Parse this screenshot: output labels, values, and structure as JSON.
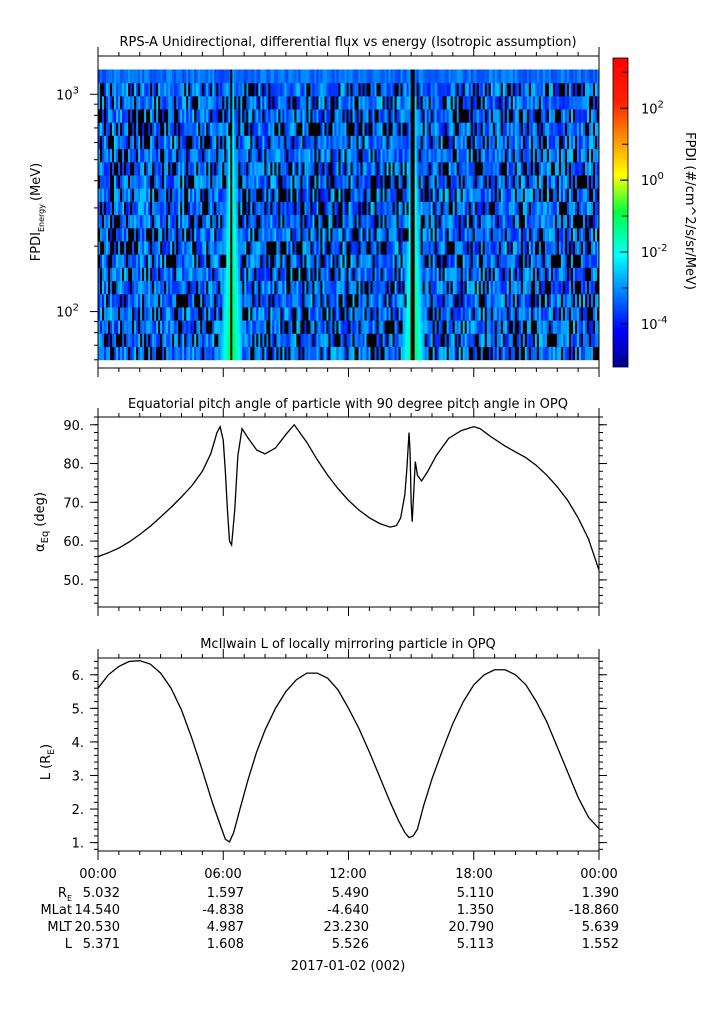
{
  "chart_data": [
    {
      "type": "heatmap",
      "title": "RPS-A Unidirectional, differential flux vs energy (Isotropic assumption)",
      "ylabel": "FPDI",
      "ylabel_sub": "Energy",
      "ylabel_unit": "(MeV)",
      "yscale": "log",
      "ylim": [
        55,
        1500
      ],
      "yticks": [
        {
          "value": 100,
          "base": "10",
          "exp": "2"
        },
        {
          "value": 1000,
          "base": "10",
          "exp": "3"
        }
      ],
      "energy_bins_min": 60,
      "energy_bins_max": 1300,
      "xlim_hours": [
        0,
        24
      ],
      "colorbar": {
        "label": "FPDI (#/cm^2/s/sr/MeV)",
        "scale": "log",
        "range_log10": [
          -5.2,
          3.4
        ],
        "ticks": [
          {
            "base": "10",
            "exp": "2",
            "log": 2
          },
          {
            "base": "10",
            "exp": "0",
            "log": 0
          },
          {
            "base": "10",
            "exp": "-2",
            "log": -2
          },
          {
            "base": "10",
            "exp": "-4",
            "log": -4
          }
        ]
      },
      "bright_bands": [
        {
          "peak_hour": 6.4,
          "flux_log10_peak": -0.5
        },
        {
          "peak_hour": 15.1,
          "flux_log10_peak": -0.5
        }
      ],
      "background_flux_log10": [
        -4.0,
        -2.5
      ]
    },
    {
      "type": "line",
      "title": "Equatorial pitch angle of particle with 90 degree pitch angle in OPQ",
      "ylabel": "α",
      "ylabel_sub": "Eq",
      "ylabel_unit": "(deg)",
      "ylim": [
        43,
        92
      ],
      "yticks": [
        "50.",
        "60.",
        "70.",
        "80.",
        "90."
      ],
      "series": [
        {
          "x": [
            0,
            0.5,
            1,
            1.5,
            2,
            2.5,
            3,
            3.5,
            4,
            4.5,
            5,
            5.4,
            5.7,
            5.85,
            6.0,
            6.1,
            6.2,
            6.3,
            6.4,
            6.55,
            6.7,
            6.9,
            7.2,
            7.6,
            8.0,
            8.5,
            9.0,
            9.4,
            10,
            10.5,
            11,
            11.5,
            12,
            12.5,
            13,
            13.5,
            14,
            14.3,
            14.5,
            14.7,
            14.8,
            14.9,
            14.95,
            15.0,
            15.05,
            15.1,
            15.2,
            15.3,
            15.5,
            15.8,
            16.2,
            16.8,
            17.4,
            18.0,
            18.3,
            18.8,
            19.5,
            20.0,
            20.5,
            21.0,
            21.5,
            22.0,
            22.5,
            23.0,
            23.5,
            24.0
          ],
          "y": [
            56.0,
            57.0,
            58.2,
            59.8,
            61.7,
            63.8,
            66.2,
            68.7,
            71.4,
            74.3,
            78.0,
            82.5,
            88.0,
            89.5,
            86.0,
            78.0,
            68.0,
            60.0,
            59.0,
            68.0,
            82.0,
            89.0,
            86.5,
            83.5,
            82.5,
            84.0,
            87.5,
            90.0,
            85.5,
            81.0,
            77.0,
            73.5,
            70.5,
            68.0,
            66.0,
            64.5,
            63.6,
            64.0,
            66.0,
            72.0,
            79.0,
            88.0,
            83.0,
            70.0,
            65.0,
            70.0,
            80.5,
            77.0,
            75.5,
            78.0,
            82.0,
            86.5,
            88.5,
            89.5,
            89.0,
            87.0,
            84.5,
            83.0,
            81.5,
            79.5,
            77.0,
            74.0,
            70.5,
            66.0,
            60.5,
            52.5
          ]
        }
      ],
      "xlim_hours": [
        0,
        24
      ]
    },
    {
      "type": "line",
      "title": "McIlwain L of locally mirroring particle in OPQ",
      "ylabel": "L",
      "ylabel_unit_prefix": "(R",
      "ylabel_unit_sub": "E",
      "ylabel_unit_suffix": ")",
      "ylim": [
        0.75,
        6.5
      ],
      "yticks": [
        "1.",
        "2.",
        "3.",
        "4.",
        "5.",
        "6."
      ],
      "series": [
        {
          "x": [
            0,
            0.5,
            1,
            1.5,
            2,
            2.5,
            3,
            3.5,
            4,
            4.5,
            5,
            5.5,
            5.9,
            6.1,
            6.3,
            6.5,
            6.8,
            7.2,
            7.6,
            8,
            8.5,
            9,
            9.5,
            10,
            10.5,
            11,
            11.5,
            12,
            12.5,
            13,
            13.5,
            14,
            14.4,
            14.7,
            14.9,
            15.1,
            15.3,
            15.6,
            16,
            16.5,
            17,
            17.5,
            18,
            18.5,
            19,
            19.5,
            20,
            20.5,
            21,
            21.5,
            22,
            22.5,
            23,
            23.5,
            24
          ],
          "y": [
            5.6,
            6.0,
            6.25,
            6.4,
            6.42,
            6.32,
            6.05,
            5.6,
            4.95,
            4.1,
            3.15,
            2.15,
            1.45,
            1.1,
            1.02,
            1.3,
            2.0,
            2.9,
            3.7,
            4.35,
            5.0,
            5.5,
            5.85,
            6.05,
            6.05,
            5.9,
            5.55,
            5.0,
            4.4,
            3.7,
            2.95,
            2.2,
            1.65,
            1.3,
            1.15,
            1.2,
            1.4,
            2.1,
            2.9,
            3.75,
            4.55,
            5.2,
            5.7,
            6.0,
            6.15,
            6.15,
            6.0,
            5.7,
            5.2,
            4.6,
            3.85,
            3.1,
            2.35,
            1.75,
            1.42
          ]
        }
      ],
      "xlim_hours": [
        0,
        24
      ]
    }
  ],
  "x_axis": {
    "ticks": [
      "00:00",
      "06:00",
      "12:00",
      "18:00",
      "00:00"
    ],
    "date_label": "2017-01-02 (002)"
  },
  "ephemeris": {
    "rows": [
      {
        "label": "R",
        "label_sub": "E",
        "values": [
          "5.032",
          "1.597",
          "5.490",
          "5.110",
          "1.390"
        ]
      },
      {
        "label": "MLat",
        "values": [
          "14.540",
          "-4.838",
          "-4.640",
          "1.350",
          "-18.860"
        ]
      },
      {
        "label": "MLT",
        "values": [
          "20.530",
          "4.987",
          "23.230",
          "20.790",
          "5.639"
        ]
      },
      {
        "label": "L",
        "values": [
          "5.371",
          "1.608",
          "5.526",
          "5.113",
          "1.552"
        ]
      }
    ]
  }
}
